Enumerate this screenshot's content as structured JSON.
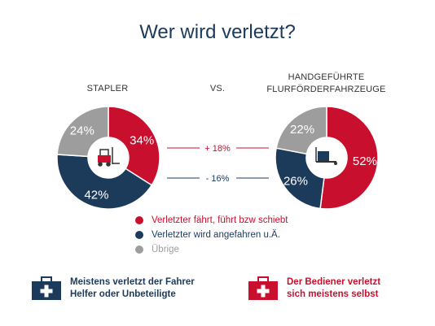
{
  "header": {
    "title": "Wer wird verletzt?"
  },
  "labels": {
    "left": "STAPLER",
    "vs": "VS.",
    "right_line1": "HANDGEFÜHRTE",
    "right_line2": "FLURFÖRDERFAHRZEUGE"
  },
  "comparison": {
    "top": {
      "label": "+ 18%",
      "color": "#c8102e"
    },
    "bottom": {
      "label": "- 16%",
      "color": "#1c3a5a"
    }
  },
  "chart_data": [
    {
      "type": "pie",
      "title": "STAPLER",
      "categories": [
        "Verletzter fährt, führt bzw schiebt",
        "Verletzter wird angefahren u.Ä.",
        "Übrige"
      ],
      "values": [
        34,
        42,
        24
      ],
      "labels": [
        "34%",
        "42%",
        "24%"
      ],
      "colors": [
        "#c8102e",
        "#1c3a5a",
        "#9d9d9d"
      ],
      "center_icon": "forklift-icon"
    },
    {
      "type": "pie",
      "title": "HANDGEFÜHRTE FLURFÖRDERFAHRZEUGE",
      "categories": [
        "Verletzter fährt, führt bzw schiebt",
        "Verletzter wird angefahren u.Ä.",
        "Übrige"
      ],
      "values": [
        52,
        26,
        22
      ],
      "labels": [
        "52%",
        "26%",
        "22%"
      ],
      "colors": [
        "#c8102e",
        "#1c3a5a",
        "#9d9d9d"
      ],
      "center_icon": "pallet-truck-icon"
    }
  ],
  "legend": [
    {
      "label": "Verletzter fährt, führt bzw schiebt",
      "color": "#c8102e",
      "text_color": "#c8102e"
    },
    {
      "label": "Verletzter wird angefahren u.Ä.",
      "color": "#1c3a5a",
      "text_color": "#1c3a5a"
    },
    {
      "label": "Übrige",
      "color": "#9d9d9d",
      "text_color": "#9d9d9d"
    }
  ],
  "notes": {
    "left": {
      "line1": "Meistens verletzt der Fahrer",
      "line2": "Helfer oder Unbeteiligte",
      "color": "#1c3a5a",
      "icon": "first-aid-kit-icon"
    },
    "right": {
      "line1": "Der Bediener verletzt",
      "line2": "sich meistens selbst",
      "color": "#c8102e",
      "icon": "first-aid-kit-icon"
    }
  }
}
